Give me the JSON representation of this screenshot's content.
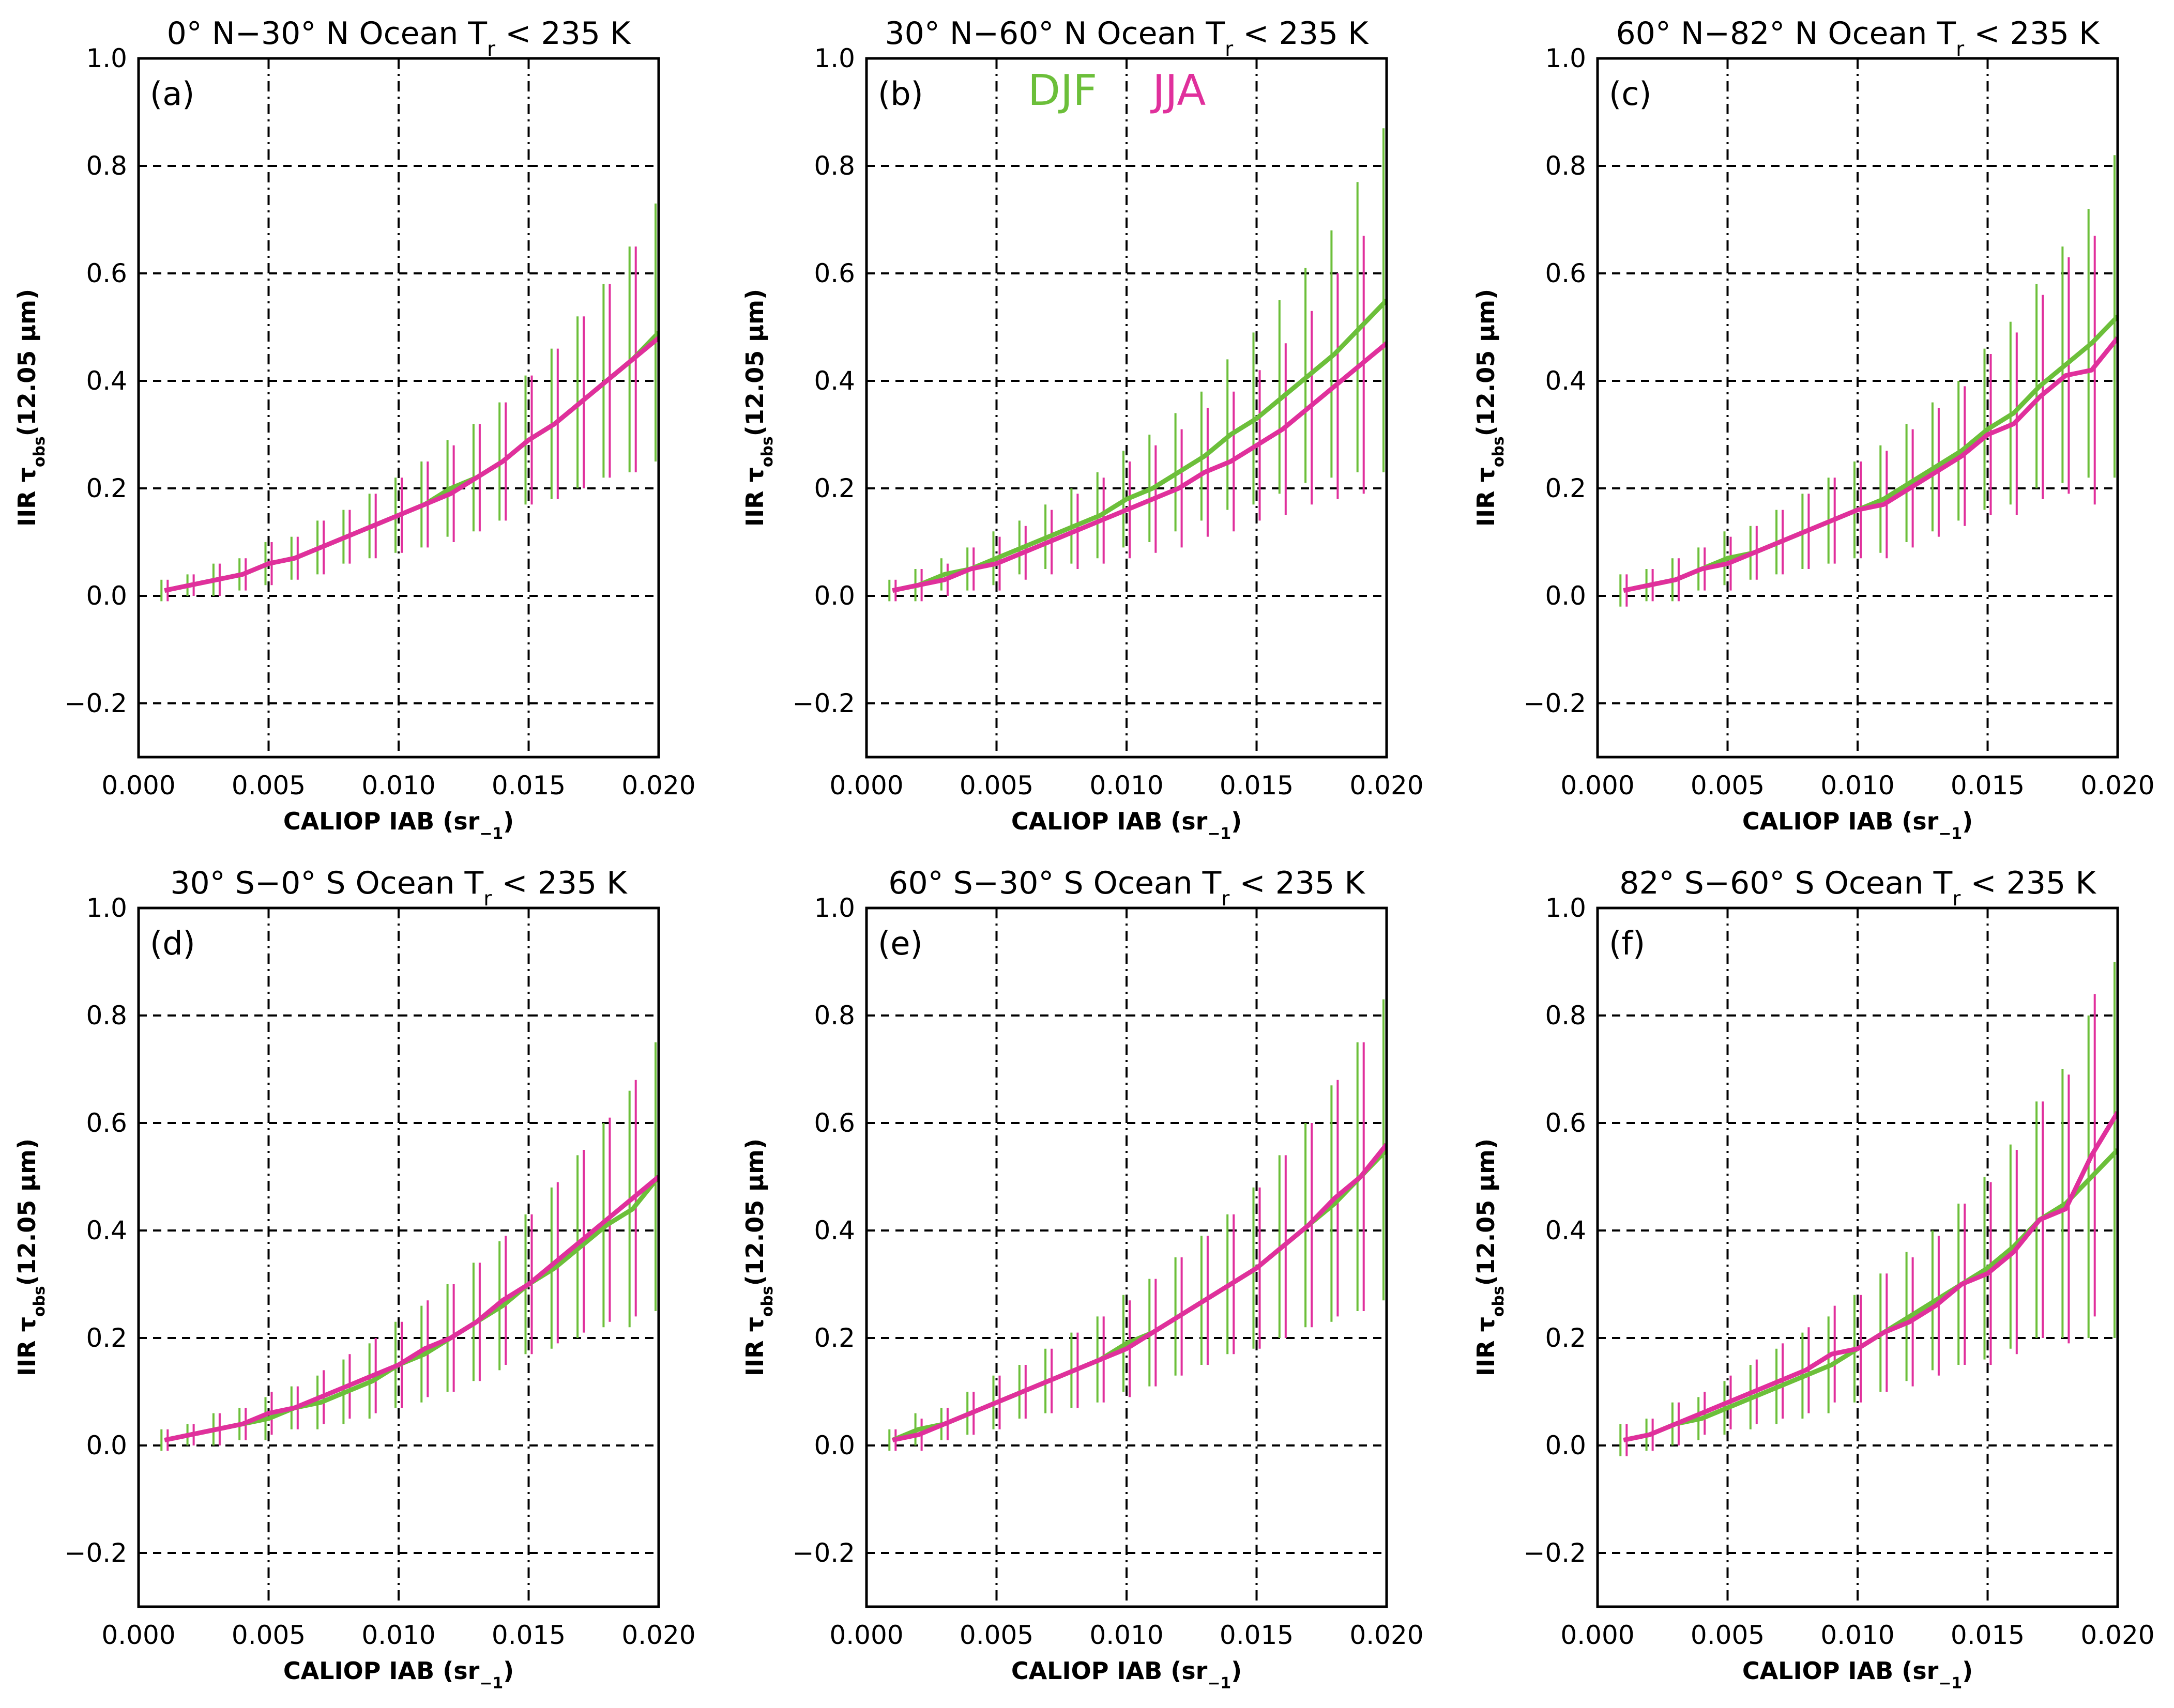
{
  "chart_data": [
    {
      "type": "errorbar-line",
      "title": [
        "0° N−30° N Ocean T",
        "r",
        " < 235 K"
      ],
      "panel_label": "(a)",
      "x_label": [
        "CALIOP IAB (sr",
        "−1",
        ")"
      ],
      "y_label": [
        "IIR τ",
        "obs",
        "(12.05 μm)"
      ],
      "xlim": [
        0,
        0.02
      ],
      "ylim": [
        -0.3,
        1.0
      ],
      "xticks": [
        {
          "value": 0,
          "label": "0.000"
        },
        {
          "value": 0.005,
          "label": "0.005"
        },
        {
          "value": 0.01,
          "label": "0.010"
        },
        {
          "value": 0.015,
          "label": "0.015"
        },
        {
          "value": 0.02,
          "label": "0.020"
        }
      ],
      "yticks": [
        {
          "value": -0.2,
          "label": "−0.2"
        },
        {
          "value": 0,
          "label": "0.0"
        },
        0.2,
        0.4,
        0.6,
        0.8,
        {
          "value": 1,
          "label": "1.0"
        }
      ],
      "grid": true,
      "legend": false,
      "x": [
        0.001,
        0.002,
        0.003,
        0.004,
        0.005,
        0.006,
        0.007,
        0.008,
        0.009,
        0.01,
        0.011,
        0.012,
        0.013,
        0.014,
        0.015,
        0.016,
        0.017,
        0.018,
        0.019,
        0.02
      ],
      "series": [
        {
          "name": "DJF",
          "color": "#6cbf3a",
          "values": [
            0.01,
            0.02,
            0.03,
            0.04,
            0.06,
            0.07,
            0.09,
            0.11,
            0.13,
            0.15,
            0.17,
            0.2,
            0.22,
            0.25,
            0.29,
            0.32,
            0.36,
            0.4,
            0.44,
            0.49
          ],
          "errors": [
            0.02,
            0.02,
            0.03,
            0.03,
            0.04,
            0.04,
            0.05,
            0.05,
            0.06,
            0.07,
            0.08,
            0.09,
            0.1,
            0.11,
            0.12,
            0.14,
            0.16,
            0.18,
            0.21,
            0.24
          ]
        },
        {
          "name": "JJA",
          "color": "#e0309c",
          "values": [
            0.01,
            0.02,
            0.03,
            0.04,
            0.06,
            0.07,
            0.09,
            0.11,
            0.13,
            0.15,
            0.17,
            0.19,
            0.22,
            0.25,
            0.29,
            0.32,
            0.36,
            0.4,
            0.44,
            0.48
          ],
          "errors": [
            0.02,
            0.02,
            0.03,
            0.03,
            0.04,
            0.04,
            0.05,
            0.05,
            0.06,
            0.07,
            0.08,
            0.09,
            0.1,
            0.11,
            0.12,
            0.14,
            0.16,
            0.18,
            0.21,
            0.24
          ]
        }
      ]
    },
    {
      "type": "errorbar-line",
      "title": [
        "30° N−60° N Ocean T",
        "r",
        " < 235 K"
      ],
      "panel_label": "(b)",
      "x_label": [
        "CALIOP IAB (sr",
        "−1",
        ")"
      ],
      "y_label": [
        "IIR τ",
        "obs",
        "(12.05 μm)"
      ],
      "xlim": [
        0,
        0.02
      ],
      "ylim": [
        -0.3,
        1.0
      ],
      "xticks": [
        {
          "value": 0,
          "label": "0.000"
        },
        {
          "value": 0.005,
          "label": "0.005"
        },
        {
          "value": 0.01,
          "label": "0.010"
        },
        {
          "value": 0.015,
          "label": "0.015"
        },
        {
          "value": 0.02,
          "label": "0.020"
        }
      ],
      "yticks": [
        {
          "value": -0.2,
          "label": "−0.2"
        },
        {
          "value": 0,
          "label": "0.0"
        },
        0.2,
        0.4,
        0.6,
        0.8,
        {
          "value": 1,
          "label": "1.0"
        }
      ],
      "grid": true,
      "legend": true,
      "x": [
        0.001,
        0.002,
        0.003,
        0.004,
        0.005,
        0.006,
        0.007,
        0.008,
        0.009,
        0.01,
        0.011,
        0.012,
        0.013,
        0.014,
        0.015,
        0.016,
        0.017,
        0.018,
        0.019,
        0.02
      ],
      "series": [
        {
          "name": "DJF",
          "color": "#6cbf3a",
          "values": [
            0.01,
            0.02,
            0.04,
            0.05,
            0.07,
            0.09,
            0.11,
            0.13,
            0.15,
            0.18,
            0.2,
            0.23,
            0.26,
            0.3,
            0.33,
            0.37,
            0.41,
            0.45,
            0.5,
            0.55
          ],
          "errors": [
            0.02,
            0.03,
            0.03,
            0.04,
            0.05,
            0.05,
            0.06,
            0.07,
            0.08,
            0.09,
            0.1,
            0.11,
            0.12,
            0.14,
            0.16,
            0.18,
            0.2,
            0.23,
            0.27,
            0.32
          ]
        },
        {
          "name": "JJA",
          "color": "#e0309c",
          "values": [
            0.01,
            0.02,
            0.03,
            0.05,
            0.06,
            0.08,
            0.1,
            0.12,
            0.14,
            0.16,
            0.18,
            0.2,
            0.23,
            0.25,
            0.28,
            0.31,
            0.35,
            0.39,
            0.43,
            0.47
          ],
          "errors": [
            0.02,
            0.03,
            0.03,
            0.04,
            0.05,
            0.05,
            0.06,
            0.07,
            0.08,
            0.09,
            0.1,
            0.11,
            0.12,
            0.13,
            0.14,
            0.16,
            0.18,
            0.21,
            0.24,
            0.28
          ]
        }
      ]
    },
    {
      "type": "errorbar-line",
      "title": [
        "60° N−82° N Ocean T",
        "r",
        " < 235 K"
      ],
      "panel_label": "(c)",
      "x_label": [
        "CALIOP IAB (sr",
        "−1",
        ")"
      ],
      "y_label": [
        "IIR τ",
        "obs",
        "(12.05 μm)"
      ],
      "xlim": [
        0,
        0.02
      ],
      "ylim": [
        -0.3,
        1.0
      ],
      "xticks": [
        {
          "value": 0,
          "label": "0.000"
        },
        {
          "value": 0.005,
          "label": "0.005"
        },
        {
          "value": 0.01,
          "label": "0.010"
        },
        {
          "value": 0.015,
          "label": "0.015"
        },
        {
          "value": 0.02,
          "label": "0.020"
        }
      ],
      "yticks": [
        {
          "value": -0.2,
          "label": "−0.2"
        },
        {
          "value": 0,
          "label": "0.0"
        },
        0.2,
        0.4,
        0.6,
        0.8,
        {
          "value": 1,
          "label": "1.0"
        }
      ],
      "grid": true,
      "legend": false,
      "x": [
        0.001,
        0.002,
        0.003,
        0.004,
        0.005,
        0.006,
        0.007,
        0.008,
        0.009,
        0.01,
        0.011,
        0.012,
        0.013,
        0.014,
        0.015,
        0.016,
        0.017,
        0.018,
        0.019,
        0.02
      ],
      "series": [
        {
          "name": "DJF",
          "color": "#6cbf3a",
          "values": [
            0.01,
            0.02,
            0.03,
            0.05,
            0.07,
            0.08,
            0.1,
            0.12,
            0.14,
            0.16,
            0.18,
            0.21,
            0.24,
            0.27,
            0.31,
            0.34,
            0.39,
            0.43,
            0.47,
            0.52
          ],
          "errors": [
            0.03,
            0.03,
            0.04,
            0.04,
            0.05,
            0.05,
            0.06,
            0.07,
            0.08,
            0.09,
            0.1,
            0.11,
            0.12,
            0.13,
            0.15,
            0.17,
            0.19,
            0.22,
            0.25,
            0.3
          ]
        },
        {
          "name": "JJA",
          "color": "#e0309c",
          "values": [
            0.01,
            0.02,
            0.03,
            0.05,
            0.06,
            0.08,
            0.1,
            0.12,
            0.14,
            0.16,
            0.17,
            0.2,
            0.23,
            0.26,
            0.3,
            0.32,
            0.37,
            0.41,
            0.42,
            0.48
          ],
          "errors": [
            0.03,
            0.03,
            0.04,
            0.04,
            0.05,
            0.05,
            0.06,
            0.07,
            0.08,
            0.09,
            0.1,
            0.11,
            0.12,
            0.13,
            0.15,
            0.17,
            0.19,
            0.22,
            0.25,
            0.3
          ]
        }
      ]
    },
    {
      "type": "errorbar-line",
      "title": [
        "30° S−0° S Ocean T",
        "r",
        " < 235 K"
      ],
      "panel_label": "(d)",
      "x_label": [
        "CALIOP IAB (sr",
        "−1",
        ")"
      ],
      "y_label": [
        "IIR τ",
        "obs",
        "(12.05 μm)"
      ],
      "xlim": [
        0,
        0.02
      ],
      "ylim": [
        -0.3,
        1.0
      ],
      "xticks": [
        {
          "value": 0,
          "label": "0.000"
        },
        {
          "value": 0.005,
          "label": "0.005"
        },
        {
          "value": 0.01,
          "label": "0.010"
        },
        {
          "value": 0.015,
          "label": "0.015"
        },
        {
          "value": 0.02,
          "label": "0.020"
        }
      ],
      "yticks": [
        {
          "value": -0.2,
          "label": "−0.2"
        },
        {
          "value": 0,
          "label": "0.0"
        },
        0.2,
        0.4,
        0.6,
        0.8,
        {
          "value": 1,
          "label": "1.0"
        }
      ],
      "grid": true,
      "legend": false,
      "x": [
        0.001,
        0.002,
        0.003,
        0.004,
        0.005,
        0.006,
        0.007,
        0.008,
        0.009,
        0.01,
        0.011,
        0.012,
        0.013,
        0.014,
        0.015,
        0.016,
        0.017,
        0.018,
        0.019,
        0.02
      ],
      "series": [
        {
          "name": "DJF",
          "color": "#6cbf3a",
          "values": [
            0.01,
            0.02,
            0.03,
            0.04,
            0.05,
            0.07,
            0.08,
            0.1,
            0.12,
            0.15,
            0.17,
            0.2,
            0.23,
            0.26,
            0.3,
            0.33,
            0.37,
            0.41,
            0.44,
            0.5
          ],
          "errors": [
            0.02,
            0.02,
            0.03,
            0.03,
            0.04,
            0.04,
            0.05,
            0.06,
            0.07,
            0.08,
            0.09,
            0.1,
            0.11,
            0.12,
            0.13,
            0.15,
            0.17,
            0.19,
            0.22,
            0.25
          ]
        },
        {
          "name": "JJA",
          "color": "#e0309c",
          "values": [
            0.01,
            0.02,
            0.03,
            0.04,
            0.06,
            0.07,
            0.09,
            0.11,
            0.13,
            0.15,
            0.18,
            0.2,
            0.23,
            0.27,
            0.3,
            0.34,
            0.38,
            0.42,
            0.46,
            0.5
          ],
          "errors": [
            0.02,
            0.02,
            0.03,
            0.03,
            0.04,
            0.04,
            0.05,
            0.06,
            0.07,
            0.08,
            0.09,
            0.1,
            0.11,
            0.12,
            0.13,
            0.15,
            0.17,
            0.19,
            0.22,
            0.25
          ]
        }
      ]
    },
    {
      "type": "errorbar-line",
      "title": [
        "60° S−30° S Ocean T",
        "r",
        " < 235 K"
      ],
      "panel_label": "(e)",
      "x_label": [
        "CALIOP IAB (sr",
        "−1",
        ")"
      ],
      "y_label": [
        "IIR τ",
        "obs",
        "(12.05 μm)"
      ],
      "xlim": [
        0,
        0.02
      ],
      "ylim": [
        -0.3,
        1.0
      ],
      "xticks": [
        {
          "value": 0,
          "label": "0.000"
        },
        {
          "value": 0.005,
          "label": "0.005"
        },
        {
          "value": 0.01,
          "label": "0.010"
        },
        {
          "value": 0.015,
          "label": "0.015"
        },
        {
          "value": 0.02,
          "label": "0.020"
        }
      ],
      "yticks": [
        {
          "value": -0.2,
          "label": "−0.2"
        },
        {
          "value": 0,
          "label": "0.0"
        },
        0.2,
        0.4,
        0.6,
        0.8,
        {
          "value": 1,
          "label": "1.0"
        }
      ],
      "grid": true,
      "legend": false,
      "x": [
        0.001,
        0.002,
        0.003,
        0.004,
        0.005,
        0.006,
        0.007,
        0.008,
        0.009,
        0.01,
        0.011,
        0.012,
        0.013,
        0.014,
        0.015,
        0.016,
        0.017,
        0.018,
        0.019,
        0.02
      ],
      "series": [
        {
          "name": "DJF",
          "color": "#6cbf3a",
          "values": [
            0.01,
            0.03,
            0.04,
            0.06,
            0.08,
            0.1,
            0.12,
            0.14,
            0.16,
            0.19,
            0.21,
            0.24,
            0.27,
            0.3,
            0.33,
            0.37,
            0.41,
            0.45,
            0.5,
            0.55
          ],
          "errors": [
            0.02,
            0.03,
            0.03,
            0.04,
            0.05,
            0.05,
            0.06,
            0.07,
            0.08,
            0.09,
            0.1,
            0.11,
            0.12,
            0.13,
            0.15,
            0.17,
            0.19,
            0.22,
            0.25,
            0.28
          ]
        },
        {
          "name": "JJA",
          "color": "#e0309c",
          "values": [
            0.01,
            0.02,
            0.04,
            0.06,
            0.08,
            0.1,
            0.12,
            0.14,
            0.16,
            0.18,
            0.21,
            0.24,
            0.27,
            0.3,
            0.33,
            0.37,
            0.41,
            0.46,
            0.5,
            0.56
          ],
          "errors": [
            0.02,
            0.03,
            0.03,
            0.04,
            0.05,
            0.05,
            0.06,
            0.07,
            0.08,
            0.09,
            0.1,
            0.11,
            0.12,
            0.13,
            0.15,
            0.17,
            0.19,
            0.22,
            0.25,
            0.3
          ]
        }
      ]
    },
    {
      "type": "errorbar-line",
      "title": [
        "82° S−60° S Ocean T",
        "r",
        " < 235 K"
      ],
      "panel_label": "(f)",
      "x_label": [
        "CALIOP IAB (sr",
        "−1",
        ")"
      ],
      "y_label": [
        "IIR τ",
        "obs",
        "(12.05 μm)"
      ],
      "xlim": [
        0,
        0.02
      ],
      "ylim": [
        -0.3,
        1.0
      ],
      "xticks": [
        {
          "value": 0,
          "label": "0.000"
        },
        {
          "value": 0.005,
          "label": "0.005"
        },
        {
          "value": 0.01,
          "label": "0.010"
        },
        {
          "value": 0.015,
          "label": "0.015"
        },
        {
          "value": 0.02,
          "label": "0.020"
        }
      ],
      "yticks": [
        {
          "value": -0.2,
          "label": "−0.2"
        },
        {
          "value": 0,
          "label": "0.0"
        },
        0.2,
        0.4,
        0.6,
        0.8,
        {
          "value": 1,
          "label": "1.0"
        }
      ],
      "grid": true,
      "legend": false,
      "x": [
        0.001,
        0.002,
        0.003,
        0.004,
        0.005,
        0.006,
        0.007,
        0.008,
        0.009,
        0.01,
        0.011,
        0.012,
        0.013,
        0.014,
        0.015,
        0.016,
        0.017,
        0.018,
        0.019,
        0.02
      ],
      "series": [
        {
          "name": "DJF",
          "color": "#6cbf3a",
          "values": [
            0.01,
            0.02,
            0.04,
            0.05,
            0.07,
            0.09,
            0.11,
            0.13,
            0.15,
            0.18,
            0.21,
            0.24,
            0.27,
            0.3,
            0.33,
            0.37,
            0.42,
            0.45,
            0.5,
            0.55
          ],
          "errors": [
            0.03,
            0.03,
            0.04,
            0.04,
            0.05,
            0.06,
            0.07,
            0.08,
            0.09,
            0.1,
            0.11,
            0.12,
            0.13,
            0.15,
            0.17,
            0.19,
            0.22,
            0.25,
            0.3,
            0.35
          ]
        },
        {
          "name": "JJA",
          "color": "#e0309c",
          "values": [
            0.01,
            0.02,
            0.04,
            0.06,
            0.08,
            0.1,
            0.12,
            0.14,
            0.17,
            0.18,
            0.21,
            0.23,
            0.26,
            0.3,
            0.32,
            0.36,
            0.42,
            0.44,
            0.54,
            0.62
          ],
          "errors": [
            0.03,
            0.03,
            0.04,
            0.04,
            0.05,
            0.06,
            0.07,
            0.08,
            0.09,
            0.1,
            0.11,
            0.12,
            0.13,
            0.15,
            0.17,
            0.19,
            0.22,
            0.25,
            0.3,
            0.38
          ]
        }
      ]
    }
  ]
}
